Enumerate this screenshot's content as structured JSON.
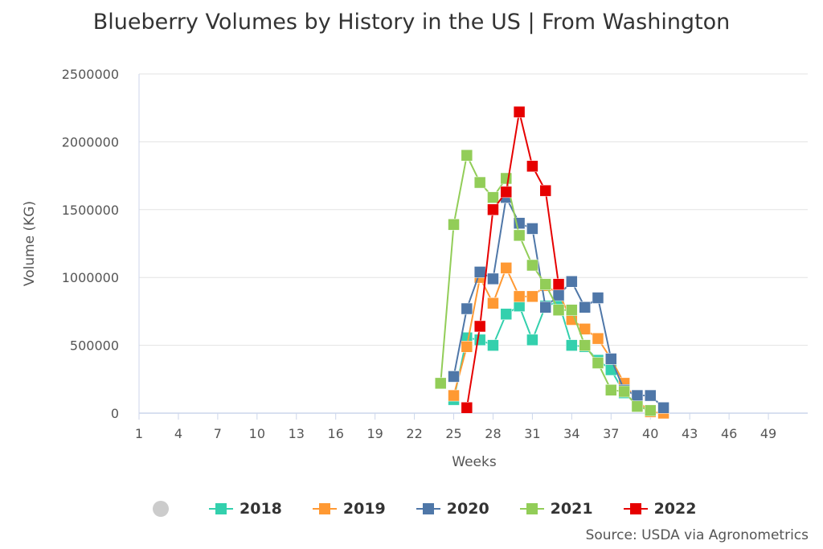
{
  "chart_data": {
    "type": "line",
    "title": "Blueberry Volumes by History in the US | From Washington",
    "xlabel": "Weeks",
    "ylabel": "Volume (KG)",
    "xlim": [
      1,
      52
    ],
    "x_tick_labels": [
      "1",
      "4",
      "7",
      "10",
      "13",
      "16",
      "19",
      "22",
      "25",
      "28",
      "31",
      "34",
      "37",
      "40",
      "43",
      "46",
      "49"
    ],
    "ylim": [
      0,
      2500000
    ],
    "y_tick_labels": [
      "0",
      "500000",
      "1000000",
      "1500000",
      "2000000",
      "2500000"
    ],
    "grid": "horizontal",
    "legend": "bottom",
    "source": "Source: USDA via Agronometrics",
    "series": [
      {
        "name": "2018",
        "color": "#33d0ad",
        "x": [
          25,
          26,
          27,
          28,
          29,
          30,
          31,
          32,
          33,
          34,
          35,
          36,
          37,
          38,
          39,
          40
        ],
        "values": [
          100000,
          555000,
          540000,
          500000,
          730000,
          790000,
          540000,
          790000,
          820000,
          500000,
          490000,
          390000,
          320000,
          150000,
          60000,
          20000
        ]
      },
      {
        "name": "2019",
        "color": "#ff9933",
        "x": [
          25,
          26,
          27,
          28,
          29,
          30,
          31,
          32,
          33,
          34,
          35,
          36,
          37,
          38,
          39,
          40,
          41
        ],
        "values": [
          130000,
          490000,
          1000000,
          810000,
          1070000,
          860000,
          860000,
          940000,
          880000,
          690000,
          620000,
          550000,
          400000,
          220000,
          90000,
          10000,
          0
        ]
      },
      {
        "name": "2020",
        "color": "#4f77a8",
        "x": [
          25,
          26,
          27,
          28,
          29,
          30,
          31,
          32,
          33,
          34,
          35,
          36,
          37,
          38,
          39,
          40,
          41
        ],
        "values": [
          270000,
          770000,
          1040000,
          990000,
          1590000,
          1400000,
          1360000,
          780000,
          870000,
          970000,
          780000,
          850000,
          400000,
          170000,
          130000,
          130000,
          40000
        ]
      },
      {
        "name": "2021",
        "color": "#92cd58",
        "x": [
          24,
          25,
          26,
          27,
          28,
          29,
          30,
          31,
          32,
          33,
          34,
          35,
          36,
          37,
          38,
          39,
          40
        ],
        "values": [
          220000,
          1390000,
          1900000,
          1700000,
          1590000,
          1730000,
          1310000,
          1090000,
          950000,
          760000,
          760000,
          500000,
          370000,
          170000,
          160000,
          50000,
          20000
        ]
      },
      {
        "name": "2022",
        "color": "#e60000",
        "x": [
          26,
          27,
          28,
          29,
          30,
          31,
          32,
          33
        ],
        "values": [
          40000,
          640000,
          1500000,
          1630000,
          2220000,
          1820000,
          1640000,
          950000
        ]
      }
    ]
  }
}
